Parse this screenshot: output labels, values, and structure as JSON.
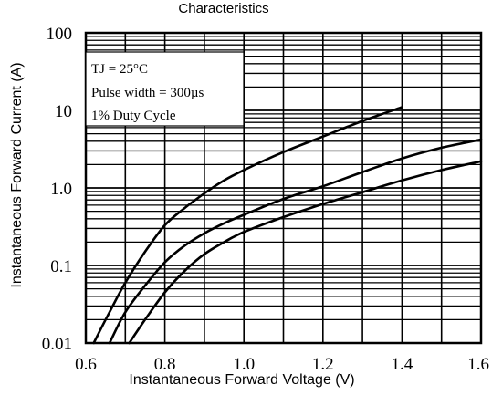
{
  "chart_data": {
    "type": "line",
    "title": "Characteristics",
    "xlabel": "Instantaneous Forward Voltage (V)",
    "ylabel": "Instantaneous Forward Current (A)",
    "xlim": [
      0.6,
      1.6
    ],
    "ylim": [
      0.01,
      100
    ],
    "yscale": "log",
    "grid": true,
    "x_ticks": [
      "0.6",
      "0.8",
      "1.0",
      "1.2",
      "1.4",
      "1.6"
    ],
    "y_ticks": [
      "0.01",
      "0.1",
      "1.0",
      "10",
      "100"
    ],
    "annotations": [
      "TJ = 25°C",
      "Pulse width = 300µs",
      "1% Duty Cycle"
    ],
    "series": [
      {
        "x": [
          0.62,
          0.66,
          0.7,
          0.75,
          0.8,
          0.85,
          0.9,
          0.95,
          1.0,
          1.1,
          1.2,
          1.3,
          1.4
        ],
        "y": [
          0.01,
          0.025,
          0.06,
          0.15,
          0.33,
          0.55,
          0.85,
          1.25,
          1.7,
          2.9,
          4.6,
          7.3,
          11.0
        ]
      },
      {
        "x": [
          0.66,
          0.7,
          0.75,
          0.8,
          0.85,
          0.9,
          0.95,
          1.0,
          1.1,
          1.2,
          1.3,
          1.4,
          1.5,
          1.6
        ],
        "y": [
          0.01,
          0.025,
          0.055,
          0.11,
          0.18,
          0.26,
          0.35,
          0.45,
          0.72,
          1.05,
          1.6,
          2.4,
          3.3,
          4.2
        ]
      },
      {
        "x": [
          0.71,
          0.75,
          0.8,
          0.85,
          0.9,
          0.95,
          1.0,
          1.1,
          1.2,
          1.3,
          1.4,
          1.5,
          1.6
        ],
        "y": [
          0.01,
          0.02,
          0.045,
          0.085,
          0.14,
          0.2,
          0.27,
          0.42,
          0.62,
          0.88,
          1.25,
          1.7,
          2.2
        ]
      }
    ]
  }
}
